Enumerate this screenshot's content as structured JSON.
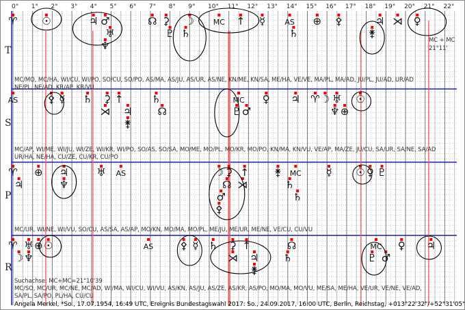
{
  "axis": {
    "unit": "°",
    "from": 0,
    "to": 22
  },
  "colors": {
    "axis_blue": "#2020b0",
    "marker_red": "#ff0000",
    "line_red": "#ff5050",
    "grid": "#a0a0a0"
  },
  "rows": [
    {
      "label": "T",
      "glyphs": [
        {
          "d": 0.0,
          "s": "♈"
        },
        {
          "d": 1.7,
          "s": "☉"
        },
        {
          "d": 4.1,
          "s": "♃"
        },
        {
          "d": 4.7,
          "s": "♂"
        },
        {
          "d": 4.95,
          "s": "♅"
        },
        {
          "d": 4.7,
          "s": "♆"
        },
        {
          "d": 7.1,
          "s": "☊"
        },
        {
          "d": 7.8,
          "s": "⚳"
        },
        {
          "d": 8.0,
          "s": "♇"
        },
        {
          "d": 9.0,
          "s": "☽"
        },
        {
          "d": 8.8,
          "s": "♄"
        },
        {
          "d": 10.5,
          "s": "MC"
        },
        {
          "d": 11.6,
          "s": "↑"
        },
        {
          "d": 12.7,
          "s": "☿"
        },
        {
          "d": 14.1,
          "s": "AS"
        },
        {
          "d": 14.3,
          "s": "♄"
        },
        {
          "d": 15.5,
          "s": "⊕"
        },
        {
          "d": 16.6,
          "s": "⚴"
        },
        {
          "d": 18.7,
          "s": "♃"
        },
        {
          "d": 19.6,
          "s": "⋊"
        },
        {
          "d": 20.6,
          "s": "♀"
        },
        {
          "d": 18.3,
          "s": "⚵"
        }
      ],
      "lines": [
        "MC/MO, MC/HA, WI/CU, WI/PO, SO/CU, SO/PO, AS/MA, AS/JU, AS/UR, AS/NE, KN/ME, KN/SA, ME/HA, VE/VE, MA/PL, MA/AD, JU/PL, JU/AD, UR/AD",
        "NE/PL, NE/AD, KR/AP, KR/VU"
      ]
    },
    {
      "label": "S",
      "glyphs": [
        {
          "d": 0.0,
          "s": "AS"
        },
        {
          "d": 1.95,
          "s": "⚴"
        },
        {
          "d": 2.5,
          "s": "☿"
        },
        {
          "d": 3.8,
          "s": "♄"
        },
        {
          "d": 4.8,
          "s": "⚳"
        },
        {
          "d": 4.7,
          "s": "⋊"
        },
        {
          "d": 5.4,
          "s": "↑"
        },
        {
          "d": 5.85,
          "s": "♃"
        },
        {
          "d": 5.85,
          "s": "⚵"
        },
        {
          "d": 7.3,
          "s": "♄"
        },
        {
          "d": 7.6,
          "s": "☊"
        },
        {
          "d": 11.5,
          "s": "MC"
        },
        {
          "d": 11.9,
          "s": "♂"
        },
        {
          "d": 11.4,
          "s": "♇"
        },
        {
          "d": 12.9,
          "s": "♀"
        },
        {
          "d": 14.4,
          "s": "♃"
        },
        {
          "d": 15.4,
          "s": "♈"
        },
        {
          "d": 15.9,
          "s": "☽"
        },
        {
          "d": 16.5,
          "s": "♅"
        },
        {
          "d": 16.4,
          "s": "♆"
        },
        {
          "d": 16.9,
          "s": "⊕"
        },
        {
          "d": 17.7,
          "s": "☉"
        }
      ],
      "lines": [
        "MC/AP, WI/ME, WI/JU, WI/ZE, WI/KR, WI/PO, SO/AS, SO/SA, MO/ME, MO/PL, MO/KR, MO/PO, KN/MA, KN/VU, VE/AP, MA/ZE, JU/CU, SA/UR, SA/NE, SA/AD",
        "UR/HA, NE/HA, CU/ZE, CU/KR, CU/PO"
      ]
    },
    {
      "label": "P",
      "glyphs": [
        {
          "d": 0.0,
          "s": "♈"
        },
        {
          "d": 0.3,
          "s": "♃"
        },
        {
          "d": 1.3,
          "s": "⊕"
        },
        {
          "d": 2.6,
          "s": "♃"
        },
        {
          "d": 2.6,
          "s": "♆"
        },
        {
          "d": 4.5,
          "s": "♅"
        },
        {
          "d": 5.5,
          "s": "AS"
        },
        {
          "d": 10.5,
          "s": "☽"
        },
        {
          "d": 10.9,
          "s": "☊"
        },
        {
          "d": 10.6,
          "s": "♂"
        },
        {
          "d": 11.8,
          "s": "↑"
        },
        {
          "d": 11.7,
          "s": "⋊"
        },
        {
          "d": 10.5,
          "s": "⚴"
        },
        {
          "d": 10.9,
          "s": "⚳"
        },
        {
          "d": 13.5,
          "s": "⚵"
        },
        {
          "d": 14.4,
          "s": "MC"
        },
        {
          "d": 14.1,
          "s": "♄"
        },
        {
          "d": 14.5,
          "s": "♄"
        },
        {
          "d": 16.1,
          "s": "☿"
        },
        {
          "d": 17.7,
          "s": "☉"
        },
        {
          "d": 18.2,
          "s": "♀"
        },
        {
          "d": 18.8,
          "s": "♇"
        }
      ],
      "lines": [
        "MC/UR, WI/NE, WI/VU, SO/CU, AS/SA, AS/AP, MO/KN, MO/MA, MO/PL, ME/JU, ME/UR, ME/NE, VE/CU, CU/VU"
      ]
    },
    {
      "label": "R",
      "glyphs": [
        {
          "d": 0.0,
          "s": "♈"
        },
        {
          "d": 0.3,
          "s": "☽"
        },
        {
          "d": 0.8,
          "s": "♅"
        },
        {
          "d": 0.8,
          "s": "♆"
        },
        {
          "d": 1.3,
          "s": "⊕"
        },
        {
          "d": 1.8,
          "s": "☉"
        },
        {
          "d": 6.9,
          "s": "AS"
        },
        {
          "d": 8.7,
          "s": "⚴"
        },
        {
          "d": 9.3,
          "s": "☿"
        },
        {
          "d": 10.2,
          "s": "♄"
        },
        {
          "d": 11.2,
          "s": "⚳"
        },
        {
          "d": 11.2,
          "s": "⋊"
        },
        {
          "d": 11.9,
          "s": "↑"
        },
        {
          "d": 12.3,
          "s": "♃"
        },
        {
          "d": 12.3,
          "s": "⚵"
        },
        {
          "d": 14.2,
          "s": "☊"
        },
        {
          "d": 14.0,
          "s": "♄"
        },
        {
          "d": 18.5,
          "s": "MC"
        },
        {
          "d": 18.3,
          "s": "♇"
        },
        {
          "d": 19.0,
          "s": "♂"
        },
        {
          "d": 19.8,
          "s": "♀"
        },
        {
          "d": 21.3,
          "s": "♃"
        }
      ],
      "search_axis": "Suchachse: MC+MC=21°10'39",
      "lines": [
        "MC/SO, MC/UR, MC/NE, MC/AD, WI/MA, WI/CU, WI/VU, AS/KN, AS/JU, AS/ZE, AS/KR, AS/PO, MO/MA, MO/VU, ME/SA, ME/HA, VE/UR, VE/NE, VE/AD,",
        "SA/PL, SA/PO, PL/HA, CU/CU"
      ]
    }
  ],
  "red_lines": [
    1.67,
    4.07,
    10.98,
    11.05,
    17.73,
    21.18
  ],
  "annotation": {
    "line1": "MC + MC",
    "line2": "21°11'"
  },
  "footer": "Angela Merkel, *So., 17.07.1954, 16:49 UTC, Ereignis Bundestagswahl 2017: So., 24.09.2017, 16:00 UTC, Berlin, Reichstag, +013°22'32\"/+52°31'05\""
}
